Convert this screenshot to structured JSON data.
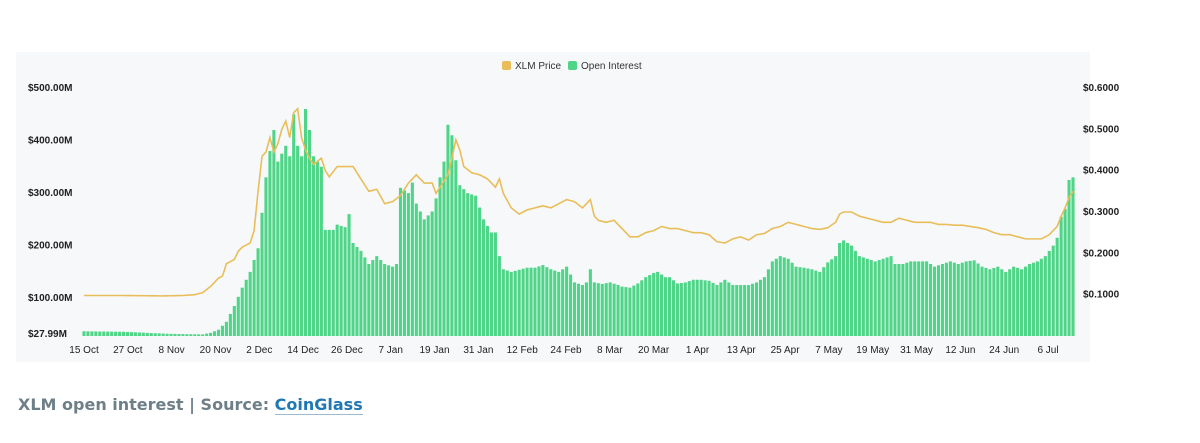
{
  "colors": {
    "price_line": "#e9be5a",
    "oi_bar": "#4fd587",
    "plot_bg": "#f7f8fa",
    "caption_text": "#6e7f88",
    "caption_link": "#1f78b4"
  },
  "caption": {
    "text": "XLM open interest | Source: ",
    "link": "CoinGlass"
  },
  "chart_data": {
    "type": "bar+line",
    "legend": {
      "placement": "top-center",
      "entries": [
        "XLM Price",
        "Open Interest"
      ]
    },
    "x_ticks": [
      "15 Oct",
      "27 Oct",
      "8 Nov",
      "20 Nov",
      "2 Dec",
      "14 Dec",
      "26 Dec",
      "7 Jan",
      "19 Jan",
      "31 Jan",
      "12 Feb",
      "24 Feb",
      "8 Mar",
      "20 Mar",
      "1 Apr",
      "13 Apr",
      "25 Apr",
      "7 May",
      "19 May",
      "31 May",
      "12 Jun",
      "24 Jun",
      "6 Jul"
    ],
    "y_left": {
      "min_label": "$27.99M",
      "min": 27.99,
      "max": 500,
      "ticks": [
        100,
        200,
        300,
        400,
        500
      ],
      "tick_labels": [
        "$100.00M",
        "$200.00M",
        "$300.00M",
        "$400.00M",
        "$500.00M"
      ]
    },
    "y_right": {
      "min": 0,
      "max": 0.6,
      "ticks": [
        0.1,
        0.2,
        0.3,
        0.4,
        0.5,
        0.6
      ],
      "tick_labels": [
        "$0.1000",
        "$0.2000",
        "$0.3000",
        "$0.4000",
        "$0.5000",
        "$0.6000"
      ]
    },
    "grid": false,
    "series": [
      {
        "name": "Open Interest",
        "type": "bar",
        "axis": "left",
        "unit": "M USD",
        "anchors": [
          [
            0,
            37
          ],
          [
            10,
            36
          ],
          [
            22,
            32
          ],
          [
            30,
            31
          ],
          [
            32,
            34
          ],
          [
            34,
            40
          ],
          [
            36,
            55
          ],
          [
            38,
            85
          ],
          [
            40,
            120
          ],
          [
            42,
            150
          ],
          [
            44,
            195
          ],
          [
            46,
            330
          ],
          [
            47,
            380
          ],
          [
            48,
            420
          ],
          [
            49,
            360
          ],
          [
            51,
            390
          ],
          [
            52,
            370
          ],
          [
            53,
            450
          ],
          [
            54,
            390
          ],
          [
            55,
            370
          ],
          [
            56,
            460
          ],
          [
            57,
            420
          ],
          [
            58,
            370
          ],
          [
            60,
            350
          ],
          [
            61,
            230
          ],
          [
            63,
            230
          ],
          [
            64,
            240
          ],
          [
            66,
            235
          ],
          [
            67,
            260
          ],
          [
            68,
            205
          ],
          [
            70,
            190
          ],
          [
            72,
            165
          ],
          [
            74,
            180
          ],
          [
            76,
            165
          ],
          [
            78,
            160
          ],
          [
            79,
            165
          ],
          [
            80,
            310
          ],
          [
            82,
            300
          ],
          [
            83,
            320
          ],
          [
            84,
            280
          ],
          [
            86,
            250
          ],
          [
            88,
            265
          ],
          [
            89,
            290
          ],
          [
            90,
            330
          ],
          [
            91,
            360
          ],
          [
            92,
            430
          ],
          [
            93,
            410
          ],
          [
            95,
            315
          ],
          [
            97,
            300
          ],
          [
            99,
            295
          ],
          [
            101,
            250
          ],
          [
            103,
            225
          ],
          [
            104,
            225
          ],
          [
            105,
            180
          ],
          [
            106,
            155
          ],
          [
            108,
            150
          ],
          [
            112,
            158
          ],
          [
            114,
            158
          ],
          [
            116,
            163
          ],
          [
            118,
            155
          ],
          [
            120,
            150
          ],
          [
            122,
            160
          ],
          [
            124,
            130
          ],
          [
            126,
            125
          ],
          [
            127,
            130
          ],
          [
            128,
            155
          ],
          [
            129,
            130
          ],
          [
            131,
            127
          ],
          [
            133,
            130
          ],
          [
            135,
            125
          ],
          [
            136,
            122
          ],
          [
            138,
            120
          ],
          [
            140,
            128
          ],
          [
            142,
            140
          ],
          [
            144,
            148
          ],
          [
            145,
            150
          ],
          [
            147,
            140
          ],
          [
            148,
            140
          ],
          [
            150,
            128
          ],
          [
            152,
            130
          ],
          [
            154,
            135
          ],
          [
            156,
            135
          ],
          [
            158,
            133
          ],
          [
            160,
            125
          ],
          [
            162,
            135
          ],
          [
            164,
            125
          ],
          [
            166,
            125
          ],
          [
            168,
            125
          ],
          [
            170,
            130
          ],
          [
            172,
            140
          ],
          [
            174,
            170
          ],
          [
            175,
            175
          ],
          [
            176,
            180
          ],
          [
            178,
            175
          ],
          [
            180,
            160
          ],
          [
            182,
            158
          ],
          [
            184,
            155
          ],
          [
            186,
            150
          ],
          [
            188,
            168
          ],
          [
            190,
            180
          ],
          [
            191,
            205
          ],
          [
            192,
            210
          ],
          [
            194,
            200
          ],
          [
            196,
            180
          ],
          [
            198,
            175
          ],
          [
            200,
            170
          ],
          [
            202,
            175
          ],
          [
            204,
            180
          ],
          [
            205,
            165
          ],
          [
            207,
            165
          ],
          [
            209,
            170
          ],
          [
            211,
            170
          ],
          [
            213,
            170
          ],
          [
            215,
            160
          ],
          [
            217,
            165
          ],
          [
            219,
            170
          ],
          [
            221,
            165
          ],
          [
            223,
            170
          ],
          [
            225,
            172
          ],
          [
            227,
            160
          ],
          [
            229,
            155
          ],
          [
            231,
            160
          ],
          [
            233,
            150
          ],
          [
            235,
            160
          ],
          [
            237,
            155
          ],
          [
            239,
            165
          ],
          [
            241,
            170
          ],
          [
            243,
            180
          ],
          [
            245,
            200
          ],
          [
            246,
            215
          ],
          [
            247,
            255
          ],
          [
            248,
            270
          ],
          [
            249,
            325
          ],
          [
            250,
            330
          ]
        ]
      },
      {
        "name": "XLM Price",
        "type": "line",
        "axis": "right",
        "unit": "USD",
        "anchors": [
          [
            0,
            0.098
          ],
          [
            10,
            0.098
          ],
          [
            20,
            0.097
          ],
          [
            25,
            0.098
          ],
          [
            28,
            0.1
          ],
          [
            30,
            0.105
          ],
          [
            32,
            0.12
          ],
          [
            34,
            0.14
          ],
          [
            35,
            0.145
          ],
          [
            36,
            0.175
          ],
          [
            38,
            0.185
          ],
          [
            39,
            0.205
          ],
          [
            40,
            0.215
          ],
          [
            42,
            0.225
          ],
          [
            43,
            0.255
          ],
          [
            44,
            0.35
          ],
          [
            45,
            0.435
          ],
          [
            46,
            0.445
          ],
          [
            47,
            0.48
          ],
          [
            48,
            0.445
          ],
          [
            49,
            0.465
          ],
          [
            50,
            0.5
          ],
          [
            51,
            0.52
          ],
          [
            52,
            0.48
          ],
          [
            53,
            0.54
          ],
          [
            54,
            0.55
          ],
          [
            55,
            0.48
          ],
          [
            56,
            0.45
          ],
          [
            57,
            0.43
          ],
          [
            58,
            0.415
          ],
          [
            60,
            0.43
          ],
          [
            61,
            0.4
          ],
          [
            62,
            0.385
          ],
          [
            64,
            0.41
          ],
          [
            66,
            0.41
          ],
          [
            68,
            0.41
          ],
          [
            70,
            0.38
          ],
          [
            72,
            0.35
          ],
          [
            74,
            0.355
          ],
          [
            76,
            0.32
          ],
          [
            78,
            0.325
          ],
          [
            80,
            0.34
          ],
          [
            82,
            0.37
          ],
          [
            84,
            0.39
          ],
          [
            86,
            0.37
          ],
          [
            88,
            0.37
          ],
          [
            89,
            0.345
          ],
          [
            90,
            0.36
          ],
          [
            92,
            0.39
          ],
          [
            93,
            0.43
          ],
          [
            94,
            0.475
          ],
          [
            95,
            0.45
          ],
          [
            96,
            0.41
          ],
          [
            98,
            0.395
          ],
          [
            100,
            0.39
          ],
          [
            102,
            0.38
          ],
          [
            104,
            0.36
          ],
          [
            105,
            0.38
          ],
          [
            106,
            0.345
          ],
          [
            108,
            0.31
          ],
          [
            110,
            0.295
          ],
          [
            112,
            0.305
          ],
          [
            114,
            0.31
          ],
          [
            116,
            0.315
          ],
          [
            118,
            0.31
          ],
          [
            120,
            0.32
          ],
          [
            122,
            0.33
          ],
          [
            124,
            0.325
          ],
          [
            126,
            0.31
          ],
          [
            128,
            0.33
          ],
          [
            129,
            0.29
          ],
          [
            130,
            0.28
          ],
          [
            132,
            0.275
          ],
          [
            134,
            0.28
          ],
          [
            136,
            0.26
          ],
          [
            138,
            0.24
          ],
          [
            140,
            0.24
          ],
          [
            142,
            0.25
          ],
          [
            144,
            0.255
          ],
          [
            146,
            0.265
          ],
          [
            148,
            0.26
          ],
          [
            150,
            0.26
          ],
          [
            152,
            0.255
          ],
          [
            154,
            0.25
          ],
          [
            156,
            0.25
          ],
          [
            158,
            0.245
          ],
          [
            160,
            0.228
          ],
          [
            162,
            0.225
          ],
          [
            164,
            0.235
          ],
          [
            166,
            0.24
          ],
          [
            168,
            0.232
          ],
          [
            170,
            0.245
          ],
          [
            172,
            0.248
          ],
          [
            174,
            0.26
          ],
          [
            176,
            0.265
          ],
          [
            178,
            0.275
          ],
          [
            180,
            0.27
          ],
          [
            182,
            0.265
          ],
          [
            184,
            0.26
          ],
          [
            186,
            0.258
          ],
          [
            188,
            0.262
          ],
          [
            190,
            0.275
          ],
          [
            191,
            0.295
          ],
          [
            192,
            0.3
          ],
          [
            194,
            0.3
          ],
          [
            196,
            0.29
          ],
          [
            198,
            0.285
          ],
          [
            200,
            0.28
          ],
          [
            202,
            0.275
          ],
          [
            204,
            0.275
          ],
          [
            206,
            0.285
          ],
          [
            208,
            0.28
          ],
          [
            210,
            0.275
          ],
          [
            212,
            0.275
          ],
          [
            214,
            0.275
          ],
          [
            216,
            0.27
          ],
          [
            218,
            0.27
          ],
          [
            220,
            0.268
          ],
          [
            222,
            0.268
          ],
          [
            224,
            0.265
          ],
          [
            226,
            0.262
          ],
          [
            228,
            0.258
          ],
          [
            230,
            0.25
          ],
          [
            232,
            0.245
          ],
          [
            234,
            0.245
          ],
          [
            236,
            0.24
          ],
          [
            238,
            0.235
          ],
          [
            240,
            0.235
          ],
          [
            242,
            0.235
          ],
          [
            244,
            0.245
          ],
          [
            246,
            0.265
          ],
          [
            247,
            0.29
          ],
          [
            248,
            0.31
          ],
          [
            249,
            0.335
          ],
          [
            250,
            0.35
          ]
        ]
      }
    ]
  }
}
